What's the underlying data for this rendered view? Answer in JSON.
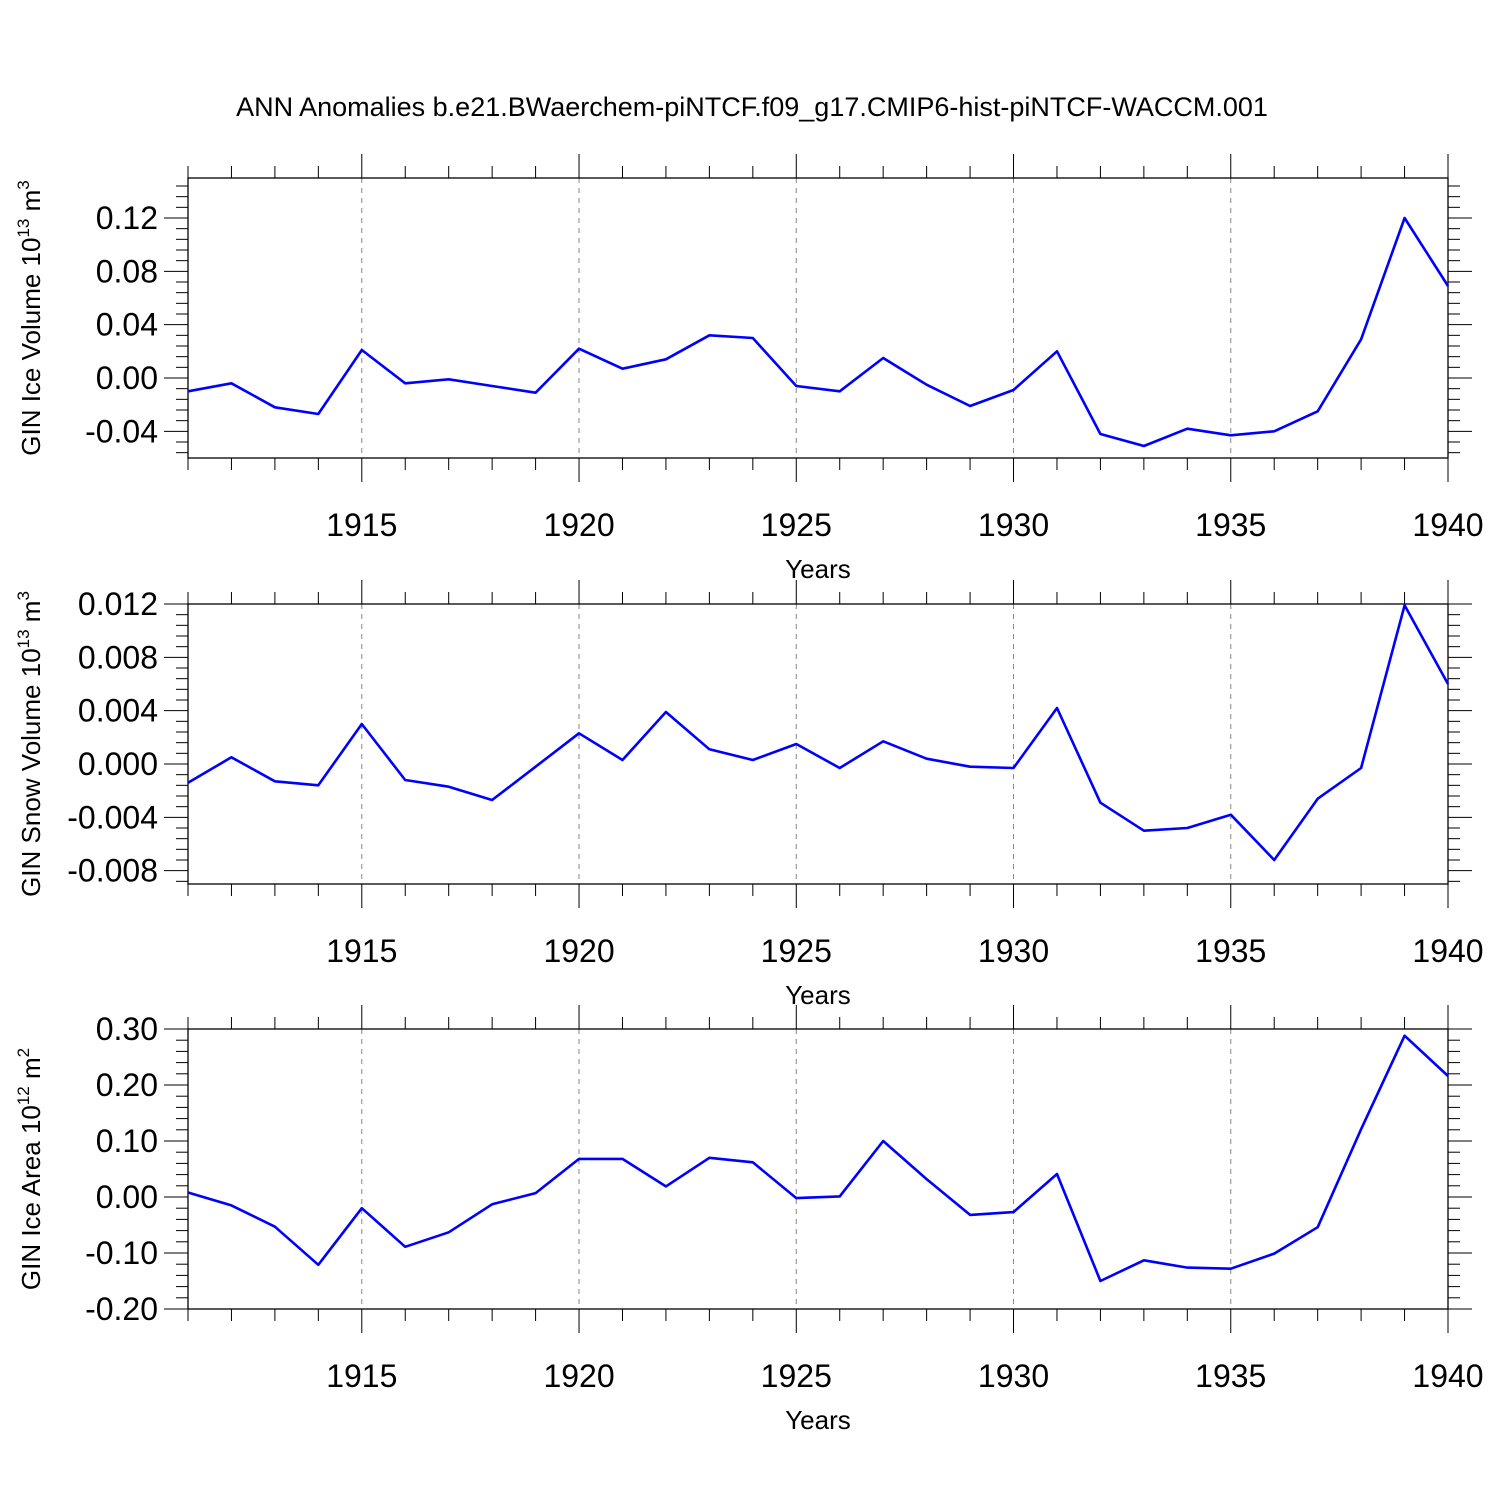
{
  "title": "ANN Anomalies b.e21.BWaerchem-piNTCF.f09_g17.CMIP6-hist-piNTCF-WACCM.001",
  "colors": {
    "series": "#0000ff",
    "axis": "#000000",
    "grid": "#888888"
  },
  "chart_data": [
    {
      "type": "line",
      "ylabel": {
        "main": "GIN Ice Volume 10",
        "sup": "13",
        "unit": " m",
        "unit_sup": "3"
      },
      "xlabel": "Years",
      "xlim": [
        1911,
        1940
      ],
      "ylim": [
        -0.06,
        0.15
      ],
      "x_ticks": [
        1915,
        1920,
        1925,
        1930,
        1935,
        1940
      ],
      "y_ticks": [
        -0.04,
        0.0,
        0.04,
        0.08,
        0.12
      ],
      "y_tick_labels": [
        "-0.04",
        "0.00",
        "0.04",
        "0.08",
        "0.12"
      ],
      "grid": "vertical dashed at major x ticks",
      "x": [
        1911,
        1912,
        1913,
        1914,
        1915,
        1916,
        1917,
        1918,
        1919,
        1920,
        1921,
        1922,
        1923,
        1924,
        1925,
        1926,
        1927,
        1928,
        1929,
        1930,
        1931,
        1932,
        1933,
        1934,
        1935,
        1936,
        1937,
        1938,
        1939,
        1940
      ],
      "series": [
        {
          "values": [
            -0.01,
            -0.004,
            -0.022,
            -0.027,
            0.021,
            -0.004,
            -0.001,
            -0.006,
            -0.011,
            0.022,
            0.007,
            0.014,
            0.032,
            0.03,
            -0.006,
            -0.01,
            0.015,
            -0.005,
            -0.021,
            -0.009,
            0.02,
            -0.042,
            -0.051,
            -0.038,
            -0.043,
            -0.04,
            -0.025,
            0.029,
            0.12,
            0.069
          ]
        }
      ]
    },
    {
      "type": "line",
      "ylabel": {
        "main": "GIN Snow Volume 10",
        "sup": "13",
        "unit": " m",
        "unit_sup": "3"
      },
      "xlabel": "Years",
      "xlim": [
        1911,
        1940
      ],
      "ylim": [
        -0.009,
        0.012
      ],
      "x_ticks": [
        1915,
        1920,
        1925,
        1930,
        1935,
        1940
      ],
      "y_ticks": [
        -0.008,
        -0.004,
        0.0,
        0.004,
        0.008,
        0.012
      ],
      "y_tick_labels": [
        "-0.008",
        "-0.004",
        "0.000",
        "0.004",
        "0.008",
        "0.012"
      ],
      "grid": "vertical dashed at major x ticks",
      "x": [
        1911,
        1912,
        1913,
        1914,
        1915,
        1916,
        1917,
        1918,
        1919,
        1920,
        1921,
        1922,
        1923,
        1924,
        1925,
        1926,
        1927,
        1928,
        1929,
        1930,
        1931,
        1932,
        1933,
        1934,
        1935,
        1936,
        1937,
        1938,
        1939,
        1940
      ],
      "series": [
        {
          "values": [
            -0.0014,
            0.0005,
            -0.0013,
            -0.0016,
            0.003,
            -0.0012,
            -0.0017,
            -0.0027,
            -0.0002,
            0.0023,
            0.0003,
            0.0039,
            0.0011,
            0.0003,
            0.0015,
            -0.0003,
            0.0017,
            0.0004,
            -0.0002,
            -0.0003,
            0.0042,
            -0.0029,
            -0.005,
            -0.0048,
            -0.0038,
            -0.0072,
            -0.0026,
            -0.0003,
            0.0119,
            0.006
          ]
        }
      ]
    },
    {
      "type": "line",
      "ylabel": {
        "main": "GIN Ice Area 10",
        "sup": "12",
        "unit": " m",
        "unit_sup": "2"
      },
      "xlabel": "Years",
      "xlim": [
        1911,
        1940
      ],
      "ylim": [
        -0.2,
        0.3
      ],
      "x_ticks": [
        1915,
        1920,
        1925,
        1930,
        1935,
        1940
      ],
      "y_ticks": [
        -0.2,
        -0.1,
        0.0,
        0.1,
        0.2,
        0.3
      ],
      "y_tick_labels": [
        "-0.20",
        "-0.10",
        "0.00",
        "0.10",
        "0.20",
        "0.30"
      ],
      "grid": "vertical dashed at major x ticks",
      "x": [
        1911,
        1912,
        1913,
        1914,
        1915,
        1916,
        1917,
        1918,
        1919,
        1920,
        1921,
        1922,
        1923,
        1924,
        1925,
        1926,
        1927,
        1928,
        1929,
        1930,
        1931,
        1932,
        1933,
        1934,
        1935,
        1936,
        1937,
        1938,
        1939,
        1940
      ],
      "series": [
        {
          "values": [
            0.008,
            -0.015,
            -0.053,
            -0.121,
            -0.02,
            -0.089,
            -0.063,
            -0.013,
            0.007,
            0.068,
            0.068,
            0.019,
            0.07,
            0.062,
            -0.002,
            0.001,
            0.1,
            0.032,
            -0.032,
            -0.027,
            0.041,
            -0.15,
            -0.113,
            -0.126,
            -0.128,
            -0.101,
            -0.054,
            0.121,
            0.288,
            0.216
          ]
        }
      ]
    }
  ]
}
